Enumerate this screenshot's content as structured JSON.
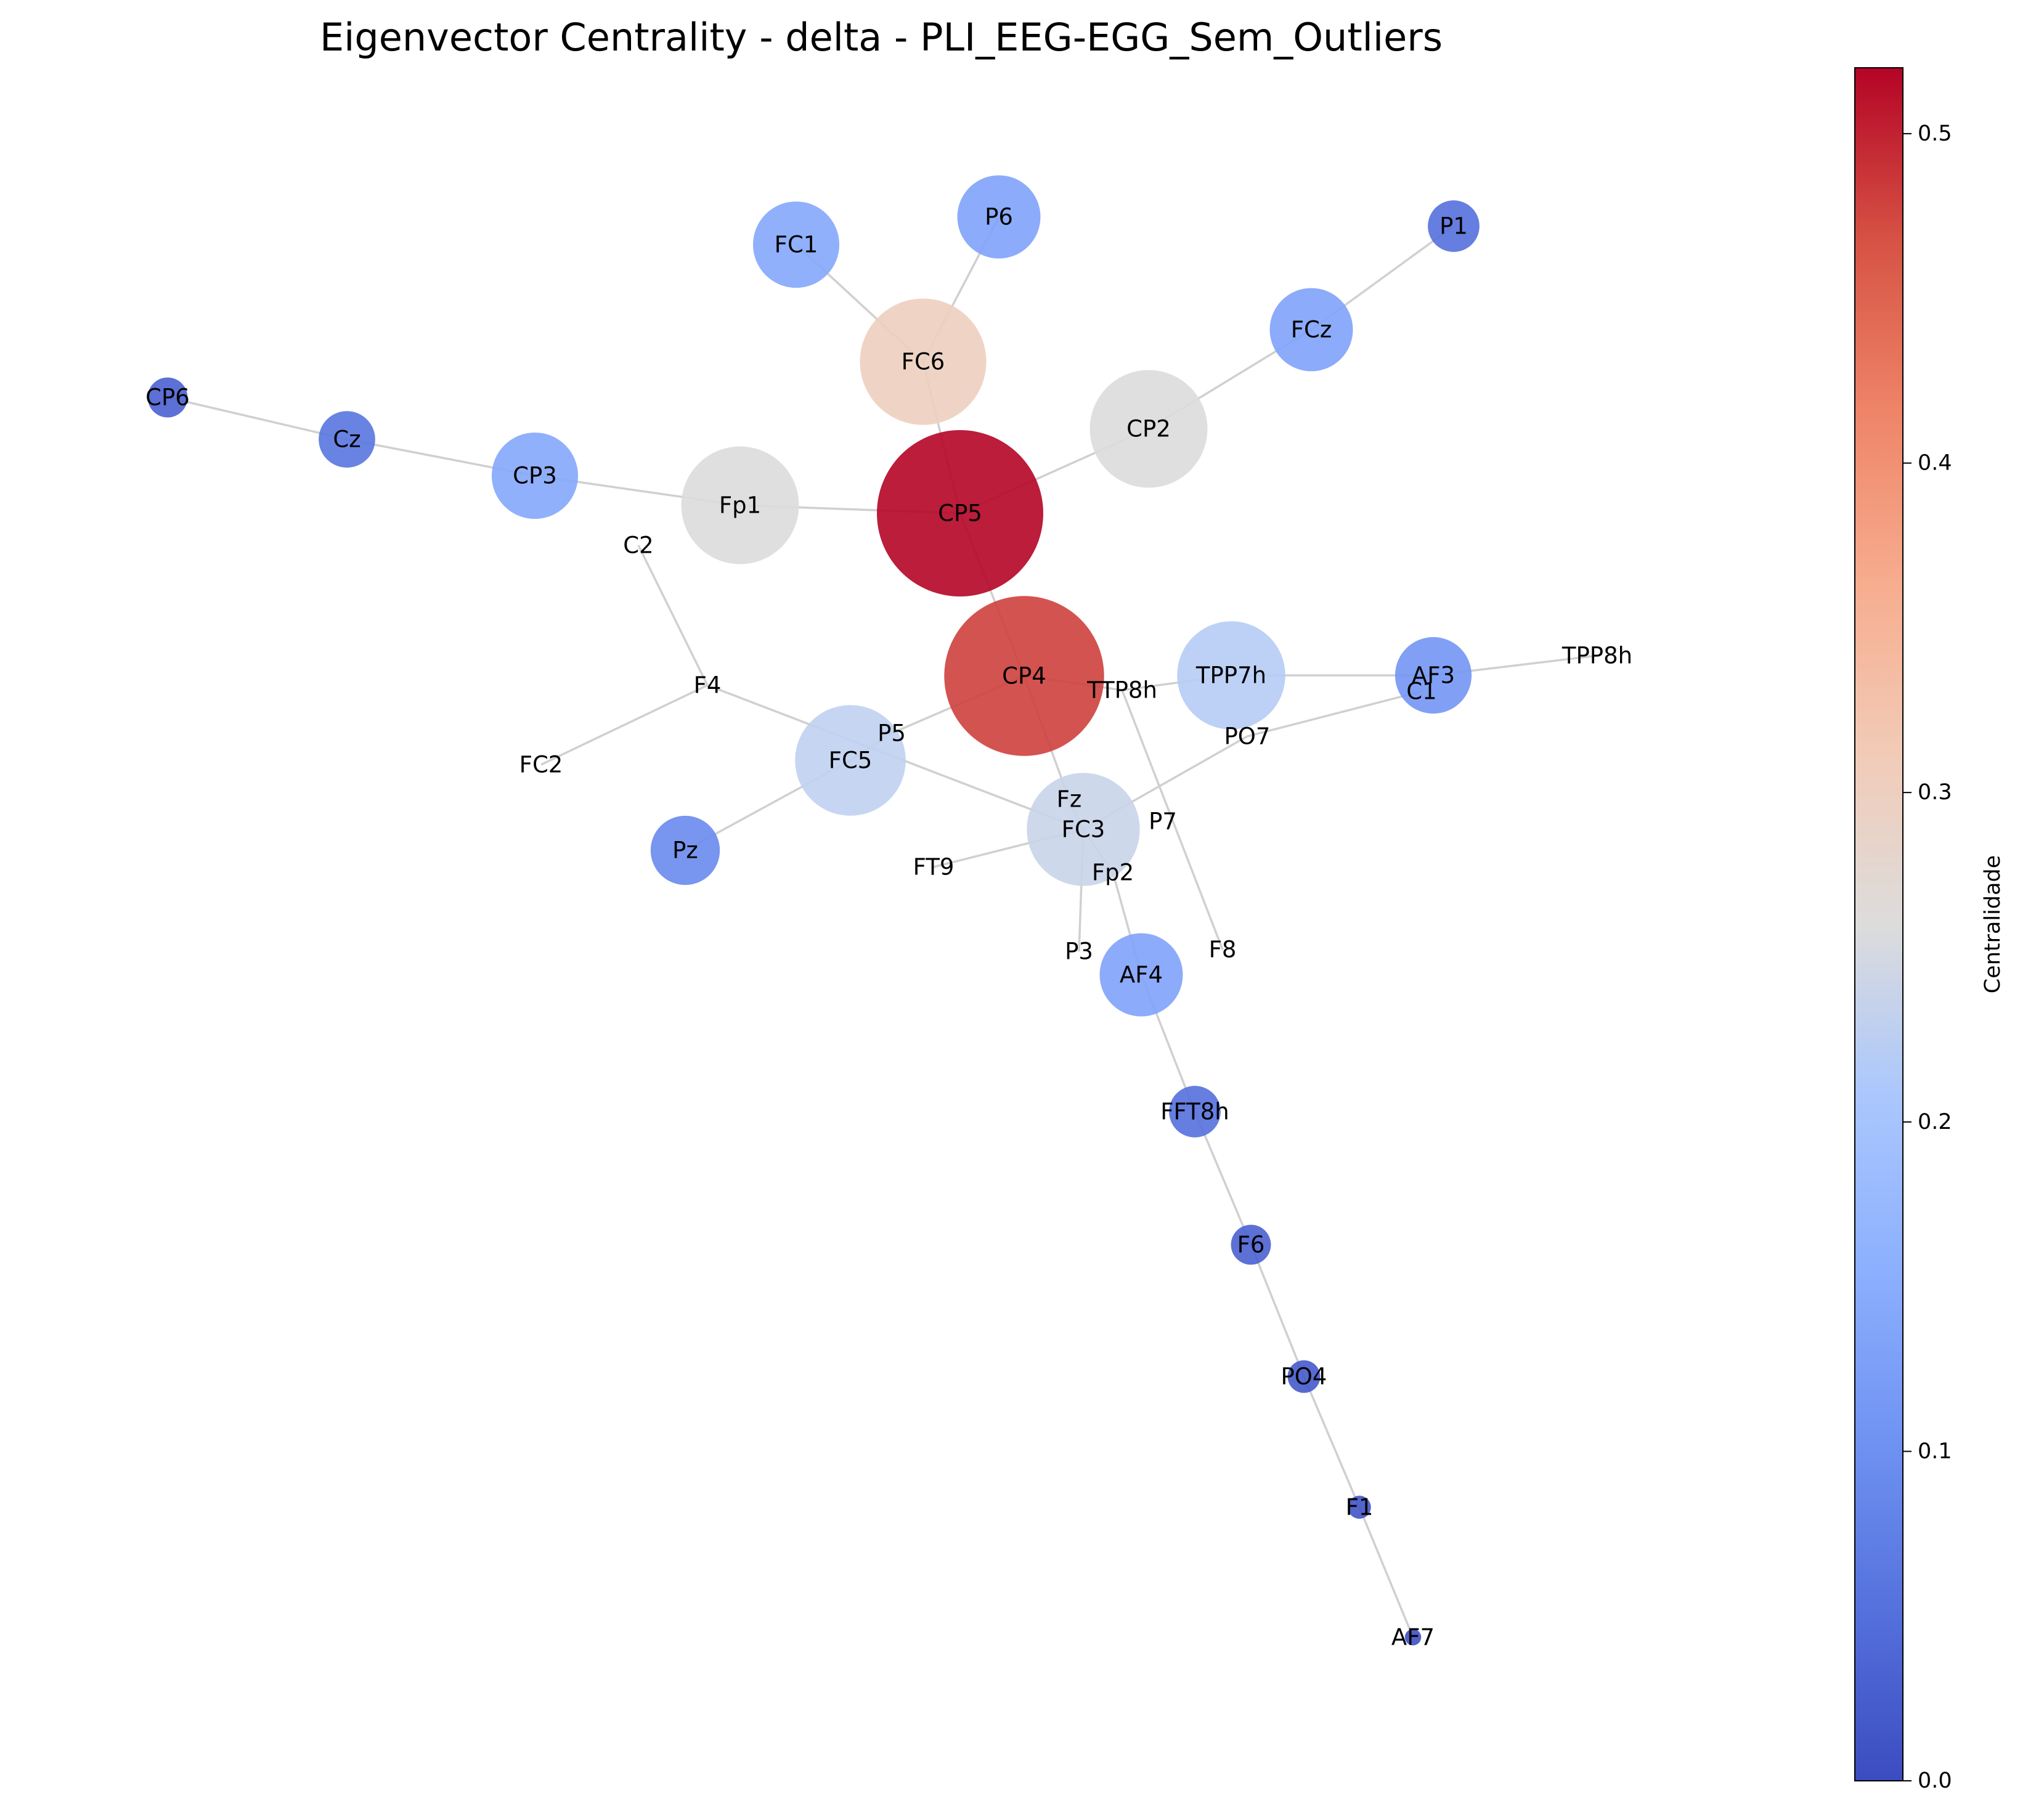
{
  "title": "Eigenvector Centrality - delta - PLI_EEG-EGG_Sem_Outliers",
  "colorbar": {
    "label": "Centralidade",
    "colormap": "coolwarm",
    "range": [
      0.0,
      0.52
    ],
    "ticks": [
      "0.0",
      "0.1",
      "0.2",
      "0.3",
      "0.4",
      "0.5"
    ],
    "tick_values": [
      0.0,
      0.1,
      0.2,
      0.3,
      0.4,
      0.5
    ]
  },
  "nodes": [
    {
      "id": "CP5",
      "centrality": 0.52
    },
    {
      "id": "CP4",
      "centrality": 0.48
    },
    {
      "id": "FC6",
      "centrality": 0.3
    },
    {
      "id": "CP2",
      "centrality": 0.26
    },
    {
      "id": "Fp1",
      "centrality": 0.26
    },
    {
      "id": "FC3",
      "centrality": 0.24
    },
    {
      "id": "FC5",
      "centrality": 0.23
    },
    {
      "id": "TPP7h",
      "centrality": 0.22
    },
    {
      "id": "FC1",
      "centrality": 0.14
    },
    {
      "id": "P6",
      "centrality": 0.13
    },
    {
      "id": "FCz",
      "centrality": 0.13
    },
    {
      "id": "CP3",
      "centrality": 0.14
    },
    {
      "id": "AF4",
      "centrality": 0.13
    },
    {
      "id": "AF3",
      "centrality": 0.11
    },
    {
      "id": "Pz",
      "centrality": 0.09
    },
    {
      "id": "Cz",
      "centrality": 0.06
    },
    {
      "id": "P1",
      "centrality": 0.05
    },
    {
      "id": "FFT8h",
      "centrality": 0.05
    },
    {
      "id": "CP6",
      "centrality": 0.03
    },
    {
      "id": "F6",
      "centrality": 0.03
    },
    {
      "id": "PO4",
      "centrality": 0.02
    },
    {
      "id": "F1",
      "centrality": 0.01
    },
    {
      "id": "AF7",
      "centrality": 0.005
    },
    {
      "id": "C2",
      "centrality": 0.0
    },
    {
      "id": "F4",
      "centrality": 0.0
    },
    {
      "id": "FC2",
      "centrality": 0.0
    },
    {
      "id": "P5",
      "centrality": 0.0
    },
    {
      "id": "Fz",
      "centrality": 0.0
    },
    {
      "id": "P7",
      "centrality": 0.0
    },
    {
      "id": "FT9",
      "centrality": 0.0
    },
    {
      "id": "Fp2",
      "centrality": 0.0
    },
    {
      "id": "P3",
      "centrality": 0.0
    },
    {
      "id": "F8",
      "centrality": 0.0
    },
    {
      "id": "TTP8h",
      "centrality": 0.0
    },
    {
      "id": "PO7",
      "centrality": 0.0
    },
    {
      "id": "C1",
      "centrality": 0.0
    },
    {
      "id": "TPP8h",
      "centrality": 0.0
    }
  ],
  "edges": [
    [
      "FC1",
      "FC6"
    ],
    [
      "P6",
      "FC6"
    ],
    [
      "FC6",
      "CP5"
    ],
    [
      "P1",
      "FCz"
    ],
    [
      "FCz",
      "CP2"
    ],
    [
      "CP2",
      "CP5"
    ],
    [
      "CP6",
      "Cz"
    ],
    [
      "Cz",
      "CP3"
    ],
    [
      "CP3",
      "Fp1"
    ],
    [
      "Fp1",
      "CP5"
    ],
    [
      "CP5",
      "CP4"
    ],
    [
      "CP4",
      "Fz"
    ],
    [
      "CP4",
      "TTP8h"
    ],
    [
      "CP4",
      "P5"
    ],
    [
      "TTP8h",
      "TPP7h"
    ],
    [
      "TPP7h",
      "AF3"
    ],
    [
      "AF3",
      "TPP8h"
    ],
    [
      "TTP8h",
      "F8"
    ],
    [
      "C1",
      "PO7"
    ],
    [
      "PO7",
      "FC3"
    ],
    [
      "C2",
      "F4"
    ],
    [
      "F4",
      "FC2"
    ],
    [
      "F4",
      "FC3"
    ],
    [
      "P5",
      "FC5"
    ],
    [
      "FC5",
      "Pz"
    ],
    [
      "Fz",
      "FC3"
    ],
    [
      "FC3",
      "Fp2"
    ],
    [
      "FC3",
      "P3"
    ],
    [
      "FT9",
      "FC3"
    ],
    [
      "Fp2",
      "AF4"
    ],
    [
      "AF4",
      "FFT8h"
    ],
    [
      "FFT8h",
      "F6"
    ],
    [
      "F6",
      "PO4"
    ],
    [
      "PO4",
      "F1"
    ],
    [
      "F1",
      "AF7"
    ]
  ]
}
